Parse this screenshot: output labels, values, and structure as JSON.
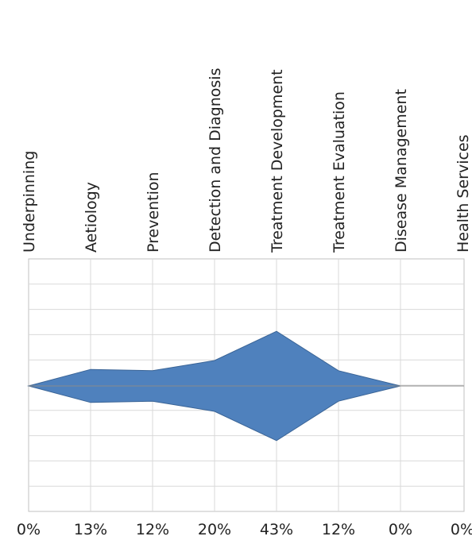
{
  "chart_data": {
    "type": "area",
    "categories": [
      "Underpinning",
      "Aetiology",
      "Prevention",
      "Detection and Diagnosis",
      "Treatment Development",
      "Treatment Evaluation",
      "Disease Management",
      "Health Services"
    ],
    "values": [
      0,
      13,
      12,
      20,
      43,
      12,
      0,
      0
    ],
    "value_labels": [
      "0%",
      "13%",
      "12%",
      "20%",
      "43%",
      "12%",
      "0%",
      "0%"
    ],
    "shape": "symmetric band mirrored about a central baseline",
    "fill_color": "#4f81bd",
    "outline_color": "#3a6496",
    "grid": true,
    "legend": "none",
    "title": "",
    "xlabel": "",
    "ylabel": ""
  }
}
